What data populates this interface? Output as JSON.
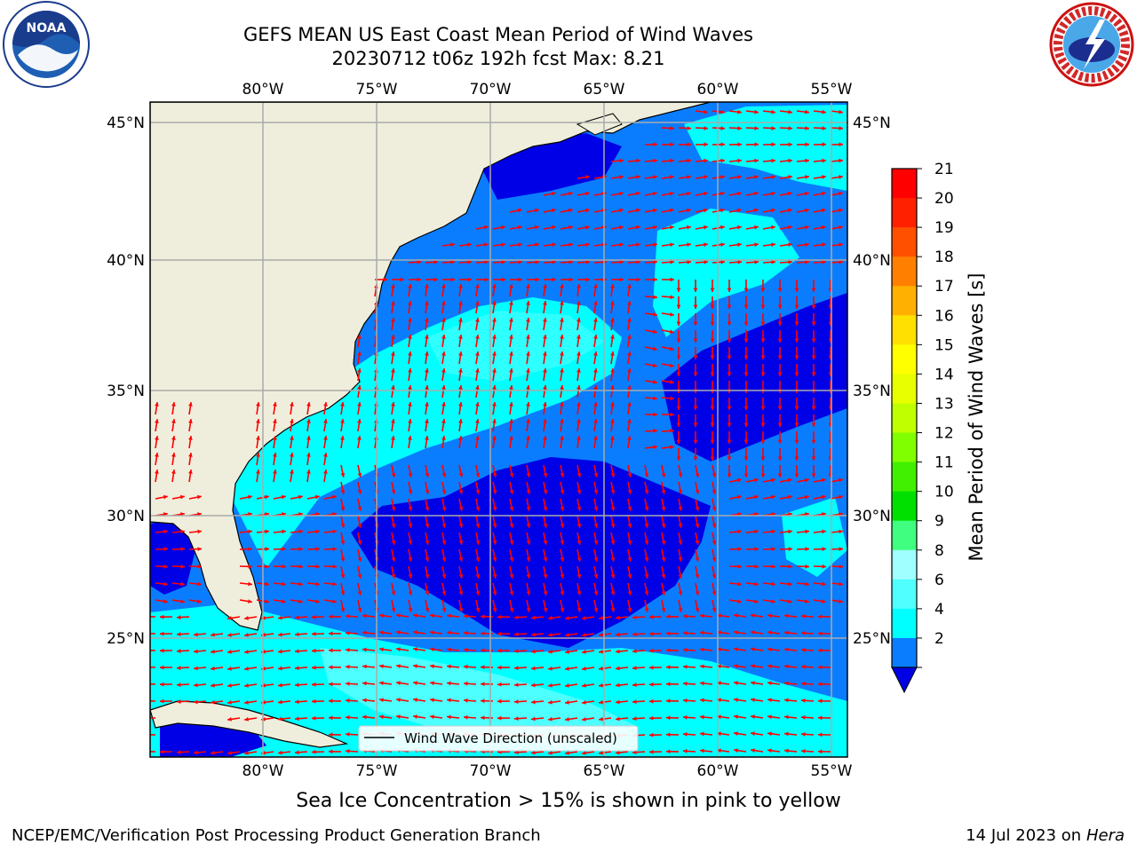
{
  "header": {
    "title_line1": "GEFS MEAN US East Coast Mean Period of Wind Waves",
    "title_line2": "20230712 t06z 192h fcst   Max: 8.21"
  },
  "logos": {
    "left": {
      "icon": "noaa-logo-icon",
      "text": "NOAA"
    },
    "right": {
      "icon": "nws-logo-icon",
      "text": "NATIONAL WEATHER SERVICE"
    }
  },
  "map": {
    "longitude_labels": [
      "80°W",
      "75°W",
      "70°W",
      "65°W",
      "60°W",
      "55°W"
    ],
    "latitude_labels": [
      "45°N",
      "40°N",
      "35°N",
      "30°N",
      "25°N"
    ],
    "legend_text": "Wind Wave Direction (unscaled)",
    "arrow_color": "#ff0000",
    "land_color": "#efeedc",
    "field_colors": {
      "2-4": "#0a7dff",
      "low": "#0000e6",
      "4-6": "#00ffff",
      "6-8": "#4dffff"
    }
  },
  "colorbar": {
    "label": "Mean Period of Wind Waves [s]",
    "ticks": [
      "21",
      "20",
      "19",
      "18",
      "17",
      "16",
      "15",
      "14",
      "13",
      "12",
      "11",
      "10",
      "9",
      "8",
      "6",
      "4",
      "2"
    ],
    "colors": [
      "#ff0000",
      "#ff2000",
      "#ff5000",
      "#ff8000",
      "#ffb000",
      "#ffe000",
      "#ffff00",
      "#e8ff00",
      "#c0ff00",
      "#80ff00",
      "#40f000",
      "#00e000",
      "#40ff80",
      "#a0ffff",
      "#50ffff",
      "#00ffff",
      "#0a7dff"
    ],
    "extend_color": "#0000e6"
  },
  "notes": {
    "sea_ice": "Sea Ice Concentration > 15% is shown in pink to yellow",
    "footer_left": "NCEP/EMC/Verification Post Processing Product Generation Branch",
    "footer_date": "14 Jul 2023 on",
    "footer_host": "Hera"
  }
}
